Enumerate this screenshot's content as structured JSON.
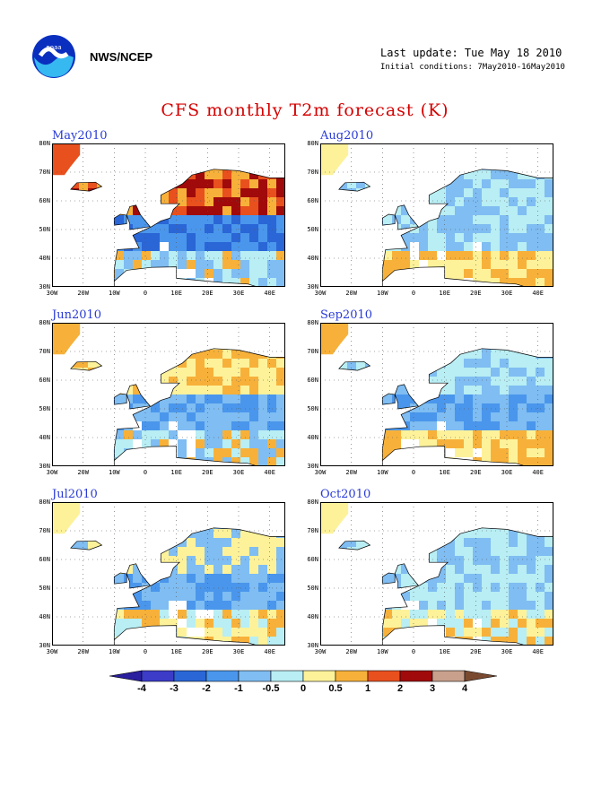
{
  "header": {
    "org": "NWS/NCEP",
    "last_update": "Last update: Tue May 18 2010",
    "initial_conditions": "Initial conditions: 7May2010-16May2010",
    "title": "CFS monthly T2m forecast (K)"
  },
  "axes": {
    "lat_labels": [
      "80N",
      "70N",
      "60N",
      "50N",
      "40N",
      "30N"
    ],
    "lon_labels": [
      "30W",
      "20W",
      "10W",
      "0",
      "10E",
      "20E",
      "30E",
      "40E"
    ]
  },
  "panels": [
    {
      "label": "May2010",
      "anomaly": {
        "north": "warm",
        "south": "cold"
      }
    },
    {
      "label": "Aug2010",
      "anomaly": {
        "north": "slightly cold",
        "south": "slightly warm"
      }
    },
    {
      "label": "Jun2010",
      "anomaly": {
        "north": "warm",
        "south": "slightly cold"
      }
    },
    {
      "label": "Sep2010",
      "anomaly": {
        "north": "slightly cold",
        "south": "slightly warm"
      }
    },
    {
      "label": "Jul2010",
      "anomaly": {
        "north": "mixed",
        "south": "slightly cold"
      }
    },
    {
      "label": "Oct2010",
      "anomaly": {
        "north": "slightly cold",
        "south": "mixed"
      }
    }
  ],
  "colorbar": {
    "labels": [
      "-4",
      "-3",
      "-2",
      "-1",
      "-0.5",
      "0",
      "0.5",
      "1",
      "2",
      "3",
      "4"
    ],
    "colors": [
      "#2a1f9e",
      "#3c3cc8",
      "#2a66d6",
      "#4a96ec",
      "#7fbdf2",
      "#b8eef4",
      "#fdf29a",
      "#f7b13a",
      "#e8501e",
      "#a00a0a",
      "#c8a08c",
      "#7a4a30"
    ]
  }
}
